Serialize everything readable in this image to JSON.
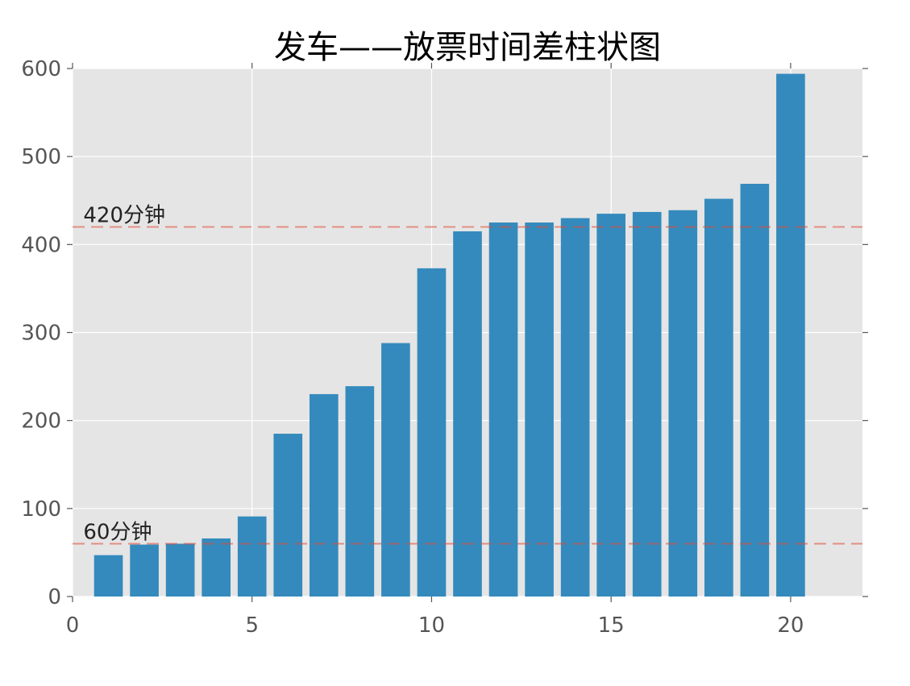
{
  "chart_data": {
    "type": "bar",
    "title": "发车——放票时间差柱状图",
    "xlabel": "",
    "ylabel": "",
    "xlim": [
      0,
      22
    ],
    "ylim": [
      0,
      600
    ],
    "x_ticks": [
      0,
      5,
      10,
      15,
      20
    ],
    "y_ticks": [
      0,
      100,
      200,
      300,
      400,
      500,
      600
    ],
    "grid": true,
    "x": [
      1,
      2,
      3,
      4,
      5,
      6,
      7,
      8,
      9,
      10,
      11,
      12,
      13,
      14,
      15,
      16,
      17,
      18,
      19,
      20
    ],
    "values": [
      47,
      59,
      60,
      66,
      91,
      185,
      230,
      239,
      288,
      373,
      415,
      425,
      425,
      430,
      435,
      437,
      439,
      452,
      469,
      594
    ],
    "bar_width": 0.8,
    "bar_color": "#348ABD",
    "reference_lines": [
      {
        "y": 420,
        "label": "420分钟",
        "color": "#E24A33",
        "style": "dashed"
      },
      {
        "y": 60,
        "label": "60分钟",
        "color": "#E24A33",
        "style": "dashed"
      }
    ],
    "colors": {
      "plot_background": "#E5E5E5",
      "grid": "#FFFFFF",
      "tick_label": "#555555",
      "title": "#000000"
    }
  }
}
